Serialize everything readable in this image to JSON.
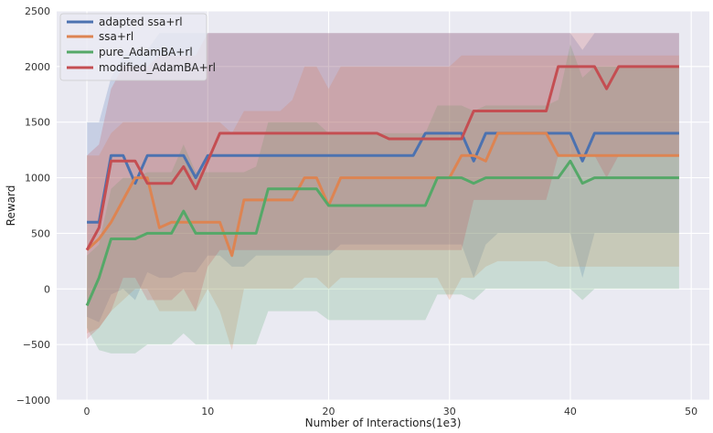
{
  "chart_data": {
    "type": "line",
    "title": "",
    "xlabel": "Number of Interactions(1e3)",
    "ylabel": "Reward",
    "xlim": [
      -2.5,
      51.5
    ],
    "ylim": [
      -1000,
      2500
    ],
    "xticks": [
      "0",
      "10",
      "20",
      "30",
      "40",
      "50"
    ],
    "yticks": [
      "−1000",
      "−500",
      "0",
      "500",
      "1000",
      "1500",
      "2000",
      "2500"
    ],
    "grid": true,
    "legend_position": "top-left",
    "x": [
      0,
      1,
      2,
      3,
      4,
      5,
      6,
      7,
      8,
      9,
      10,
      11,
      12,
      13,
      14,
      15,
      16,
      17,
      18,
      19,
      20,
      21,
      22,
      23,
      24,
      25,
      26,
      27,
      28,
      29,
      30,
      31,
      32,
      33,
      34,
      35,
      36,
      37,
      38,
      39,
      40,
      41,
      42,
      43,
      44,
      45,
      46,
      47,
      48,
      49
    ],
    "series": [
      {
        "name": "adapted ssa+rl",
        "color": "#4c72b0",
        "values": [
          600,
          600,
          1200,
          1200,
          950,
          1200,
          1200,
          1200,
          1200,
          1000,
          1200,
          1200,
          1200,
          1200,
          1200,
          1200,
          1200,
          1200,
          1200,
          1200,
          1200,
          1200,
          1200,
          1200,
          1200,
          1200,
          1200,
          1200,
          1400,
          1400,
          1400,
          1400,
          1150,
          1400,
          1400,
          1400,
          1400,
          1400,
          1400,
          1400,
          1400,
          1150,
          1400,
          1400,
          1400,
          1400,
          1400,
          1400,
          1400,
          1400
        ],
        "band_upper": [
          1500,
          1500,
          1900,
          2100,
          2150,
          2150,
          2300,
          2300,
          2300,
          2300,
          2300,
          2300,
          2300,
          2300,
          2300,
          2300,
          2300,
          2300,
          2300,
          2300,
          2300,
          2300,
          2300,
          2300,
          2300,
          2300,
          2300,
          2300,
          2300,
          2300,
          2300,
          2300,
          2300,
          2300,
          2300,
          2300,
          2300,
          2300,
          2300,
          2300,
          2300,
          2150,
          2300,
          2300,
          2300,
          2300,
          2300,
          2300,
          2300,
          2300
        ],
        "band_lower": [
          -250,
          -300,
          -50,
          0,
          -100,
          150,
          100,
          100,
          150,
          150,
          300,
          300,
          200,
          200,
          300,
          300,
          300,
          300,
          300,
          300,
          300,
          400,
          400,
          400,
          400,
          400,
          400,
          400,
          400,
          400,
          400,
          400,
          100,
          400,
          500,
          500,
          500,
          500,
          500,
          500,
          500,
          100,
          500,
          500,
          500,
          500,
          500,
          500,
          500,
          500
        ]
      },
      {
        "name": "ssa+rl",
        "color": "#dd8452",
        "values": [
          350,
          450,
          600,
          800,
          1000,
          1000,
          550,
          600,
          600,
          600,
          600,
          600,
          300,
          800,
          800,
          800,
          800,
          800,
          1000,
          1000,
          750,
          1000,
          1000,
          1000,
          1000,
          1000,
          1000,
          1000,
          1000,
          1000,
          1000,
          1200,
          1200,
          1150,
          1400,
          1400,
          1400,
          1400,
          1400,
          1200,
          1200,
          1200,
          1200,
          1200,
          1200,
          1200,
          1200,
          1200,
          1200,
          1200
        ],
        "band_upper": [
          1200,
          1200,
          1400,
          1500,
          1500,
          1500,
          1500,
          1500,
          1500,
          1500,
          1500,
          1500,
          1400,
          1600,
          1600,
          1600,
          1600,
          1700,
          2000,
          2000,
          1800,
          2000,
          2000,
          2000,
          2000,
          2000,
          2000,
          2000,
          2000,
          2000,
          2000,
          2100,
          2100,
          2100,
          2100,
          2100,
          2100,
          2100,
          2100,
          2100,
          2100,
          2100,
          2100,
          2100,
          2100,
          2100,
          2100,
          2100,
          2100,
          2100
        ],
        "band_lower": [
          -400,
          -350,
          -200,
          -100,
          0,
          0,
          -200,
          -200,
          -200,
          -200,
          0,
          -200,
          -550,
          0,
          0,
          0,
          0,
          0,
          100,
          100,
          0,
          100,
          100,
          100,
          100,
          100,
          100,
          100,
          100,
          100,
          -100,
          100,
          100,
          200,
          250,
          250,
          250,
          250,
          250,
          200,
          200,
          200,
          200,
          200,
          200,
          200,
          200,
          200,
          200,
          200
        ]
      },
      {
        "name": "pure_AdamBA+rl",
        "color": "#55a868",
        "values": [
          -150,
          100,
          450,
          450,
          450,
          500,
          500,
          500,
          700,
          500,
          500,
          500,
          500,
          500,
          500,
          900,
          900,
          900,
          900,
          900,
          750,
          750,
          750,
          750,
          750,
          750,
          750,
          750,
          750,
          1000,
          1000,
          1000,
          950,
          1000,
          1000,
          1000,
          1000,
          1000,
          1000,
          1000,
          1150,
          950,
          1000,
          1000,
          1000,
          1000,
          1000,
          1000,
          1000,
          1000
        ],
        "band_upper": [
          300,
          400,
          900,
          1000,
          1000,
          1050,
          1050,
          1050,
          1300,
          1050,
          1050,
          1050,
          1050,
          1050,
          1100,
          1500,
          1500,
          1500,
          1500,
          1500,
          1400,
          1400,
          1400,
          1400,
          1400,
          1400,
          1400,
          1400,
          1400,
          1650,
          1650,
          1650,
          1600,
          1650,
          1650,
          1650,
          1650,
          1650,
          1650,
          1700,
          2200,
          1900,
          2000,
          2000,
          2000,
          2000,
          2000,
          2000,
          2000,
          2000
        ],
        "band_lower": [
          -350,
          -550,
          -580,
          -580,
          -580,
          -500,
          -500,
          -500,
          -400,
          -500,
          -500,
          -500,
          -500,
          -500,
          -500,
          -200,
          -200,
          -200,
          -200,
          -200,
          -280,
          -280,
          -280,
          -280,
          -280,
          -280,
          -280,
          -280,
          -280,
          -50,
          -50,
          -50,
          -100,
          0,
          0,
          0,
          0,
          0,
          0,
          0,
          0,
          -100,
          0,
          0,
          0,
          0,
          0,
          0,
          0,
          0
        ]
      },
      {
        "name": "modified_AdamBA+rl",
        "color": "#c44e52",
        "values": [
          350,
          550,
          1150,
          1150,
          1150,
          950,
          950,
          950,
          1100,
          900,
          1150,
          1400,
          1400,
          1400,
          1400,
          1400,
          1400,
          1400,
          1400,
          1400,
          1400,
          1400,
          1400,
          1400,
          1400,
          1350,
          1350,
          1350,
          1350,
          1350,
          1350,
          1350,
          1600,
          1600,
          1600,
          1600,
          1600,
          1600,
          1600,
          2000,
          2000,
          2000,
          2000,
          1800,
          2000,
          2000,
          2000,
          2000,
          2000,
          2000
        ],
        "band_upper": [
          1200,
          1300,
          1800,
          2000,
          2000,
          2000,
          2100,
          2100,
          2100,
          2100,
          2300,
          2300,
          2300,
          2300,
          2300,
          2300,
          2300,
          2300,
          2300,
          2300,
          2300,
          2300,
          2300,
          2300,
          2300,
          2300,
          2300,
          2300,
          2300,
          2300,
          2300,
          2300,
          2300,
          2300,
          2300,
          2300,
          2300,
          2300,
          2300,
          2300,
          2300,
          2300,
          2300,
          2300,
          2300,
          2300,
          2300,
          2300,
          2300,
          2300
        ],
        "band_lower": [
          -450,
          -350,
          -200,
          100,
          100,
          -100,
          -100,
          -100,
          0,
          -200,
          200,
          350,
          350,
          350,
          350,
          350,
          350,
          350,
          350,
          350,
          350,
          350,
          350,
          350,
          350,
          350,
          350,
          350,
          350,
          350,
          350,
          350,
          800,
          800,
          800,
          800,
          800,
          800,
          800,
          1200,
          1200,
          1200,
          1200,
          1000,
          1200,
          1200,
          1200,
          1200,
          1200,
          1200
        ]
      }
    ]
  }
}
